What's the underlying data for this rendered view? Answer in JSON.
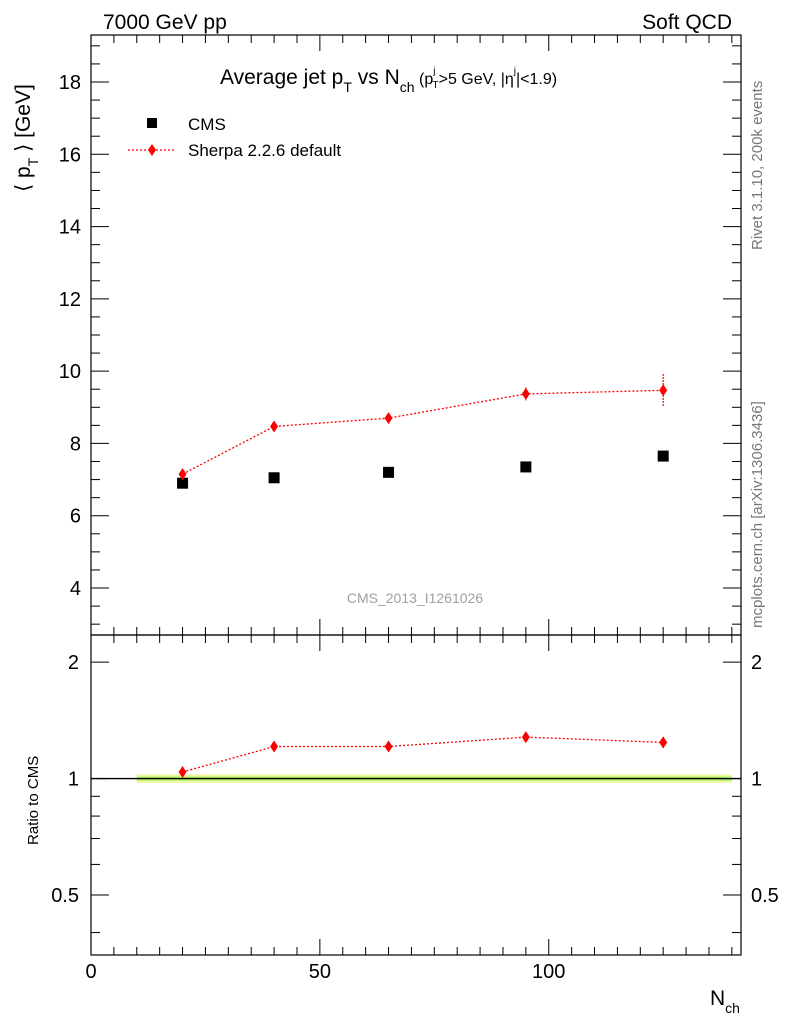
{
  "header": {
    "left": "7000 GeV pp",
    "right": "Soft QCD"
  },
  "side_labels": {
    "rivet": "Rivet 3.1.10,  200k events",
    "mcplots": "mcplots.cern.ch [arXiv:1306.3436]"
  },
  "colors": {
    "data": "#000000",
    "mc": "#ff0000",
    "band_inner": "#a6f26f",
    "band_outer": "#f0f8a0"
  },
  "chart_data": [
    {
      "type": "scatter",
      "panel": "main",
      "title": {
        "main": "Average jet p",
        "sub1": "T",
        "mid": " vs N",
        "sub2": "ch",
        "cut": " (p",
        "cut_sub": "T",
        "cut_sup": "j",
        "cut_rest": ">5 GeV, |η",
        "cut_sup2": "j",
        "cut_end": "|<1.9)"
      },
      "ylabel": "⟨ p",
      "ylabel_sub": "T",
      "ylabel_end": " ⟩ [GeV]",
      "watermark": "CMS_2013_I1261026",
      "xlim": [
        0,
        142
      ],
      "ylim": [
        2.7,
        19.3
      ],
      "yticks": [
        4,
        6,
        8,
        10,
        12,
        14,
        16,
        18
      ],
      "legend": [
        {
          "label": "CMS",
          "marker": "square"
        },
        {
          "label": "Sherpa 2.2.6 default",
          "marker": "diamond"
        }
      ],
      "series": [
        {
          "name": "CMS",
          "x": [
            20,
            40,
            65,
            95,
            125
          ],
          "y": [
            6.9,
            7.05,
            7.2,
            7.35,
            7.65
          ],
          "yerr": [
            0.05,
            0.05,
            0.05,
            0.06,
            0.07
          ]
        },
        {
          "name": "Sherpa 2.2.6 default",
          "x": [
            20,
            40,
            65,
            95,
            125
          ],
          "y": [
            7.15,
            8.47,
            8.7,
            9.37,
            9.47
          ],
          "yerr": [
            0.08,
            0.08,
            0.08,
            0.18,
            0.45
          ]
        }
      ]
    },
    {
      "type": "line",
      "panel": "ratio",
      "ylabel": "Ratio to CMS",
      "xlabel": "N",
      "xlabel_sub": "ch",
      "xlim": [
        0,
        142
      ],
      "ylim": [
        0.35,
        2.35
      ],
      "yticks": [
        0.5,
        1,
        2
      ],
      "ytick_labels": [
        "0.5",
        "1",
        "2"
      ],
      "xticks": [
        0,
        50,
        100
      ],
      "xtick_labels": [
        "0",
        "50",
        "100"
      ],
      "reference": 1,
      "band_x": [
        10,
        140
      ],
      "series": [
        {
          "name": "Sherpa 2.2.6 default",
          "x": [
            20,
            40,
            65,
            95,
            125
          ],
          "y": [
            1.04,
            1.21,
            1.21,
            1.28,
            1.24
          ],
          "yerr": [
            0.01,
            0.012,
            0.012,
            0.02,
            0.04
          ]
        }
      ]
    }
  ]
}
